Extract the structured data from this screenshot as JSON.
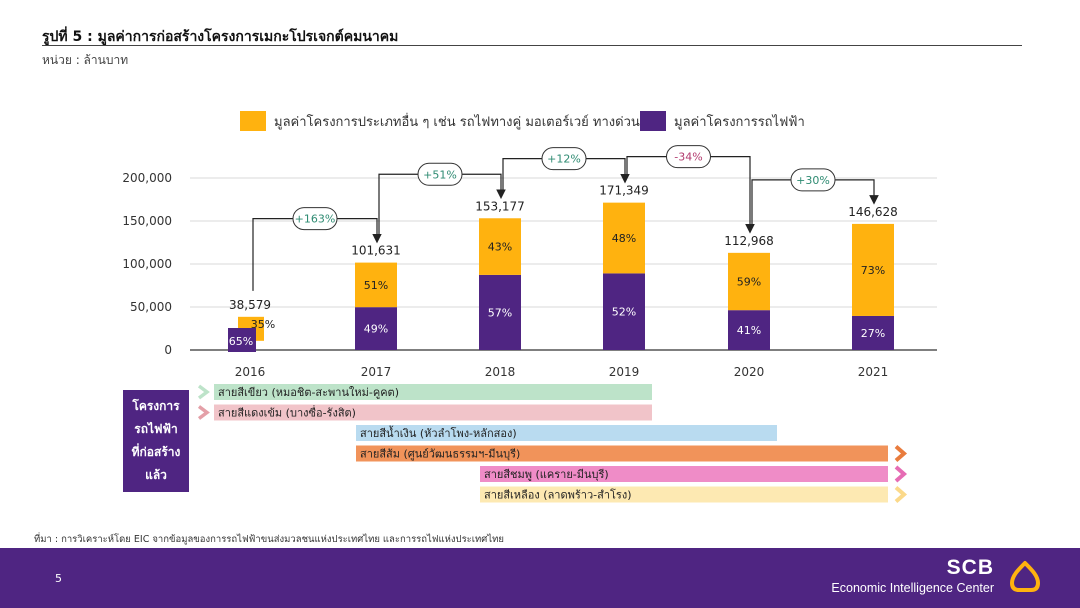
{
  "title": "รูปที่ 5 : มูลค่าการก่อสร้างโครงการเมกะโปรเจกต์คมนาคม",
  "unit": "หน่วย : ล้านบาท",
  "chart_data": {
    "type": "bar",
    "stacked": true,
    "categories": [
      "2016",
      "2017",
      "2018",
      "2019",
      "2020",
      "2021"
    ],
    "ylim": [
      0,
      200000
    ],
    "yticks": [
      0,
      50000,
      100000,
      150000,
      200000
    ],
    "ytick_labels": [
      "0",
      "50,000",
      "100,000",
      "150,000",
      "200,000"
    ],
    "totals": [
      38579,
      101631,
      153177,
      171349,
      112968,
      146628
    ],
    "total_labels": [
      "38,579",
      "101,631",
      "153,177",
      "171,349",
      "112,968",
      "146,628"
    ],
    "series": [
      {
        "name": "มูลค่าโครงการรถไฟฟ้า",
        "color": "#4f2582",
        "share": [
          65,
          49,
          57,
          52,
          41,
          27
        ],
        "share_labels": [
          "65%",
          "49%",
          "57%",
          "52%",
          "41%",
          "27%"
        ]
      },
      {
        "name": "มูลค่าโครงการประเภทอื่น ๆ เช่น รถไฟทางคู่ มอเตอร์เวย์ ทางด่วน",
        "color": "#ffb20f",
        "share": [
          35,
          51,
          43,
          48,
          59,
          73
        ],
        "share_labels": [
          "35%",
          "51%",
          "43%",
          "48%",
          "59%",
          "73%"
        ]
      }
    ],
    "growth": [
      "+163%",
      "+51%",
      "+12%",
      "-34%",
      "+30%"
    ],
    "legend_position": "top",
    "grid": true
  },
  "colors": {
    "positive_growth": "#2e8b72",
    "negative_growth": "#b23a6e",
    "footer": "#4f2582"
  },
  "lines_panel": {
    "label_lines": [
      "โครงการ",
      "รถไฟฟ้า",
      "ที่ก่อสร้าง",
      "แล้ว"
    ],
    "lines": [
      {
        "label": "สายสีเขียว (หมอชิต-สะพานใหม่-คูคต)",
        "start": 2016,
        "end": 2019,
        "color": "#bde3c9",
        "arrow": "#bde3c9",
        "continues": false
      },
      {
        "label": "สายสีแดงเข้ม (บางซื่อ-รังสิต)",
        "start": 2016,
        "end": 2019,
        "color": "#f1c4c9",
        "arrow": "#e4a0a8",
        "continues": false
      },
      {
        "label": "สายสีน้ำเงิน (หัวลำโพง-หลักสอง)",
        "start": 2017,
        "end": 2020,
        "color": "#b9dbf0",
        "arrow": "#b9dbf0",
        "continues": false
      },
      {
        "label": "สายสีส้ม (ศูนย์วัฒนธรรมฯ-มีนบุรี)",
        "start": 2017,
        "end": 2021,
        "color": "#f1935a",
        "arrow": "#e97c3d",
        "continues": true
      },
      {
        "label": "สายสีชมพู (แคราย-มีนบุรี)",
        "start": 2018,
        "end": 2021,
        "color": "#ef8cc7",
        "arrow": "#e66cb4",
        "continues": true
      },
      {
        "label": "สายสีเหลือง (ลาดพร้าว-สำโรง)",
        "start": 2018,
        "end": 2021,
        "color": "#fde9b2",
        "arrow": "#fbd98a",
        "continues": true
      }
    ]
  },
  "source": "ที่มา : การวิเคราะห์โดย EIC จากข้อมูลของการรถไฟฟ้าขนส่งมวลชนแห่งประเทศไทย และการรถไฟแห่งประเทศไทย",
  "footer": {
    "page_number": "5",
    "brand_name": "SCB",
    "brand_sub": "Economic Intelligence Center",
    "logo_icon": "scb-bell-icon"
  }
}
